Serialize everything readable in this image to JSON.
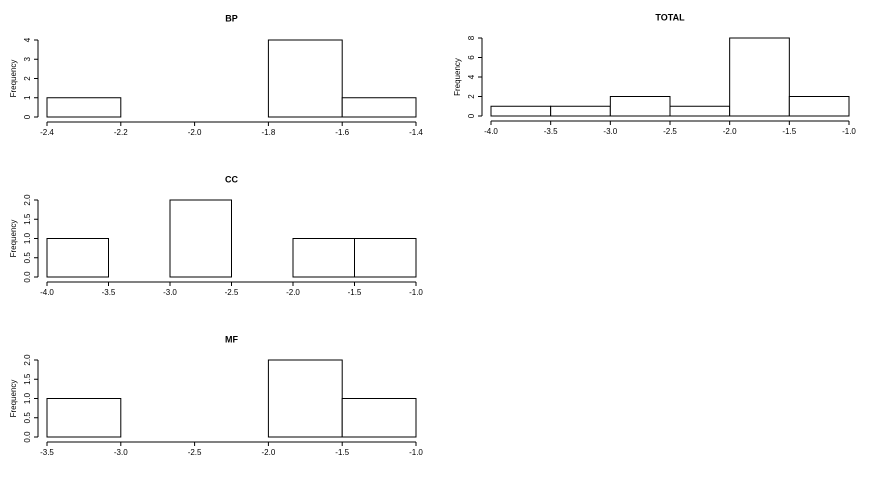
{
  "chart_data": [
    {
      "type": "histogram",
      "title": "BP",
      "ylabel": "Frequency",
      "color": "#ffffff",
      "bins": [
        -2.4,
        -2.2,
        -2.0,
        -1.8,
        -1.6,
        -1.4
      ],
      "values": [
        1,
        0,
        0,
        4,
        1
      ],
      "xlim": [
        -2.4,
        -1.4
      ],
      "xticks": [
        -2.4,
        -2.2,
        {
          "value": -2,
          "label": "-2.0"
        },
        -1.8,
        -1.6,
        -1.4
      ],
      "ylim": [
        0,
        4
      ],
      "yticks": [
        0,
        1,
        2,
        3,
        4
      ]
    },
    {
      "type": "histogram",
      "title": "TOTAL",
      "ylabel": "Frequency",
      "color": "#ffffff",
      "bins": [
        -4.0,
        -3.5,
        -3.0,
        -2.5,
        -2.0,
        -1.5,
        -1.0
      ],
      "values": [
        1,
        1,
        2,
        1,
        8,
        2
      ],
      "xlim": [
        -4,
        -1
      ],
      "xticks": [
        {
          "value": -4,
          "label": "-4.0"
        },
        -3.5,
        {
          "value": -3,
          "label": "-3.0"
        },
        -2.5,
        {
          "value": -2,
          "label": "-2.0"
        },
        -1.5,
        {
          "value": -1,
          "label": "-1.0"
        }
      ],
      "ylim": [
        0,
        8
      ],
      "yticks": [
        0,
        2,
        4,
        6,
        8
      ]
    },
    {
      "type": "histogram",
      "title": "CC",
      "ylabel": "Frequency",
      "color": "#ffffff",
      "bins": [
        -4.0,
        -3.5,
        -3.0,
        -2.5,
        -2.0,
        -1.5,
        -1.0
      ],
      "values": [
        1,
        0,
        2,
        0,
        1,
        1
      ],
      "xlim": [
        -4,
        -1
      ],
      "xticks": [
        {
          "value": -4,
          "label": "-4.0"
        },
        -3.5,
        {
          "value": -3,
          "label": "-3.0"
        },
        -2.5,
        {
          "value": -2,
          "label": "-2.0"
        },
        -1.5,
        {
          "value": -1,
          "label": "-1.0"
        }
      ],
      "ylim": [
        0,
        2
      ],
      "yticks": [
        {
          "value": 0,
          "label": "0.0"
        },
        0.5,
        {
          "value": 1,
          "label": "1.0"
        },
        1.5,
        {
          "value": 2,
          "label": "2.0"
        }
      ]
    },
    {
      "type": "histogram",
      "title": "MF",
      "ylabel": "Frequency",
      "color": "#ffffff",
      "bins": [
        -3.5,
        -3.0,
        -2.5,
        -2.0,
        -1.5,
        -1.0
      ],
      "values": [
        1,
        0,
        0,
        2,
        1
      ],
      "xlim": [
        -3.5,
        -1
      ],
      "xticks": [
        -3.5,
        {
          "value": -3,
          "label": "-3.0"
        },
        -2.5,
        {
          "value": -2,
          "label": "-2.0"
        },
        -1.5,
        {
          "value": -1,
          "label": "-1.0"
        }
      ],
      "ylim": [
        0,
        2
      ],
      "yticks": [
        {
          "value": 0,
          "label": "0.0"
        },
        0.5,
        {
          "value": 1,
          "label": "1.0"
        },
        1.5,
        {
          "value": 2,
          "label": "2.0"
        }
      ]
    }
  ]
}
